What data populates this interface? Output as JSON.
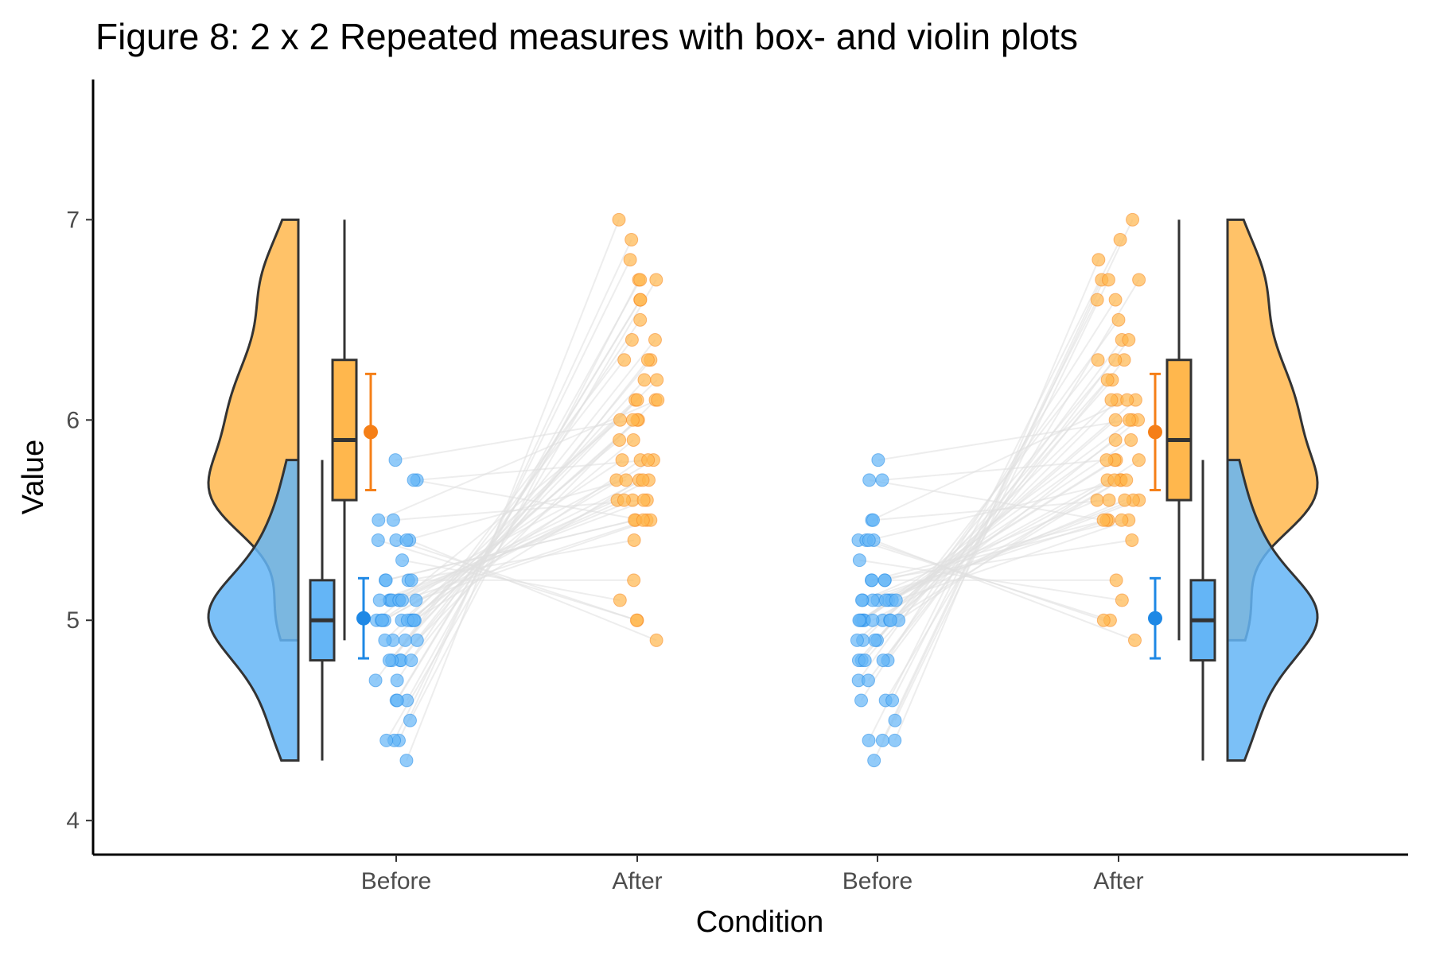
{
  "chart_data": {
    "type": "scatter",
    "title": "Figure 8: 2 x 2 Repeated measures with box- and violin plots",
    "xlabel": "Condition",
    "ylabel": "Value",
    "ylim": [
      3.83,
      7.7
    ],
    "yticks": [
      4,
      5,
      6,
      7
    ],
    "categories": [
      "Before",
      "After",
      "Before",
      "After"
    ],
    "grid": false,
    "legend": "none",
    "colors": {
      "before": "#1E88E5",
      "before_fill": "#64B5F6",
      "after": "#F57F17",
      "after_fill": "#FFB74D",
      "line": "#e0e0e0",
      "box": "#333333"
    },
    "series": [
      {
        "group": "Before",
        "values": [
          4.3,
          4.4,
          4.4,
          4.4,
          4.5,
          4.6,
          4.6,
          4.6,
          4.7,
          4.7,
          4.8,
          4.8,
          4.8,
          4.8,
          4.8,
          4.9,
          4.9,
          4.9,
          4.9,
          5.0,
          5.0,
          5.0,
          5.0,
          5.0,
          5.0,
          5.0,
          5.0,
          5.0,
          5.0,
          5.1,
          5.1,
          5.1,
          5.1,
          5.1,
          5.1,
          5.1,
          5.1,
          5.2,
          5.2,
          5.2,
          5.2,
          5.3,
          5.4,
          5.4,
          5.4,
          5.4,
          5.5,
          5.5,
          5.7,
          5.7,
          5.8
        ],
        "summary": {
          "q1": 4.8,
          "median": 5.0,
          "q3": 5.2,
          "whisker_low": 4.3,
          "whisker_high": 5.8,
          "mean": 5.01,
          "ci_low": 4.81,
          "ci_high": 5.21,
          "density_min": 4.3,
          "density_max": 5.8
        }
      },
      {
        "group": "After",
        "values": [
          7.0,
          6.9,
          6.8,
          6.7,
          6.7,
          6.7,
          6.6,
          6.6,
          6.5,
          6.4,
          6.4,
          6.3,
          6.3,
          6.3,
          6.2,
          6.2,
          6.1,
          6.1,
          6.1,
          6.0,
          6.0,
          6.0,
          5.9,
          5.9,
          5.8,
          5.8,
          5.8,
          5.7,
          5.7,
          5.7,
          5.7,
          5.6,
          5.6,
          5.6,
          5.6,
          5.5,
          5.5,
          5.5,
          5.5,
          5.4,
          5.2,
          5.1,
          5.0,
          5.0,
          4.9,
          5.7,
          6.1,
          5.6,
          5.8,
          5.5,
          6.0
        ],
        "summary": {
          "q1": 5.6,
          "median": 5.9,
          "q3": 6.3,
          "whisker_low": 4.9,
          "whisker_high": 7.0,
          "mean": 5.94,
          "ci_low": 5.65,
          "ci_high": 6.23,
          "density_min": 4.9,
          "density_max": 7.0
        }
      }
    ]
  }
}
